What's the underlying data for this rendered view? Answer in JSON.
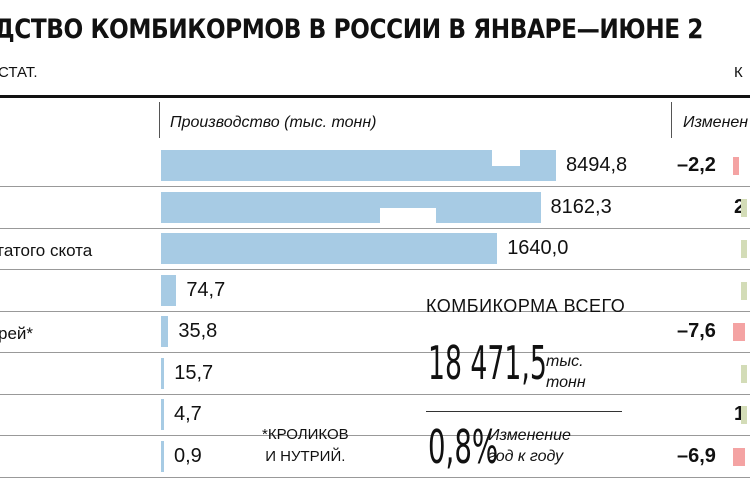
{
  "header": {
    "title": "ДСТВО КОМБИКОРМОВ В РОССИИ В ЯНВАРЕ—ИЮНЕ 2",
    "source": "СТАТ.",
    "source_right": "К"
  },
  "columns": {
    "production": "Производство (тыс. тонн)",
    "change": "Изменен"
  },
  "footnote": "*КРОЛИКОВ\nИ НУТРИЙ.",
  "total": {
    "label": "КОМБИКОРМА ВСЕГО",
    "value": "18 471,5",
    "unit_line1": "тыс.",
    "unit_line2": "тонн",
    "change": "0,8%",
    "change_line1": "Изменение",
    "change_line2": "год к году"
  },
  "colors": {
    "bar": "#a7cbe4",
    "negative": "#f4a3a3",
    "positive": "#d3dcb7",
    "negative_light": "#f6c4c4"
  },
  "chart_data": {
    "type": "bar",
    "orientation": "horizontal",
    "categories": [
      "",
      "",
      "гатого скота",
      "",
      "рей*",
      "",
      "",
      ""
    ],
    "values": [
      8494.8,
      8162.3,
      1640.0,
      74.7,
      35.8,
      15.7,
      4.7,
      0.9
    ],
    "value_labels": [
      "8494,8",
      "8162,3",
      "1640,0",
      "74,7",
      "35,8",
      "15,7",
      "4,7",
      "0,9"
    ],
    "change_labels": [
      "–2,2",
      "2",
      "",
      "",
      "–7,6",
      "",
      "1",
      "–6,9"
    ],
    "change_sign": [
      "negative",
      "positive",
      "positive",
      "positive",
      "negative",
      "positive",
      "positive",
      "negative"
    ],
    "axis_break": true,
    "xlim": [
      0,
      8494.8
    ]
  }
}
